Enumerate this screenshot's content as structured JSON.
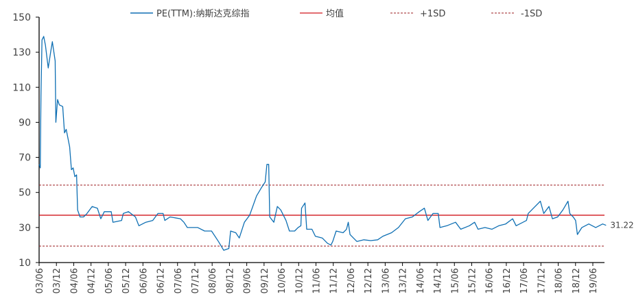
{
  "chart_data": {
    "type": "line",
    "title": "",
    "xlabel": "",
    "ylabel": "",
    "ylim": [
      10,
      150
    ],
    "yticks": [
      10,
      30,
      50,
      70,
      90,
      110,
      130,
      150
    ],
    "xticks": [
      "03/06",
      "03/12",
      "04/06",
      "04/12",
      "05/06",
      "05/12",
      "06/06",
      "06/12",
      "07/06",
      "07/12",
      "08/06",
      "08/12",
      "09/06",
      "09/12",
      "10/06",
      "10/12",
      "11/06",
      "11/12",
      "12/06",
      "12/12",
      "13/06",
      "13/12",
      "14/06",
      "14/12",
      "15/06",
      "15/12",
      "16/06",
      "16/12",
      "17/06",
      "17/12",
      "18/06",
      "18/12",
      "19/06"
    ],
    "grid": false,
    "legend_position": "top",
    "legend": [
      "PE(TTM):纳斯达克综指",
      "均值",
      "+1SD",
      "-1SD"
    ],
    "last_value_label": "31.22",
    "colors": {
      "pe": "#0E6FB3",
      "mean": "#D0141A",
      "sd": "#9B1B1F"
    },
    "mean": 37,
    "plus_1sd": 54.2,
    "minus_1sd": 19.4,
    "series": [
      {
        "name": "PE(TTM):纳斯达克综指",
        "x": [
          2003.42,
          2003.45,
          2003.47,
          2003.5,
          2003.55,
          2003.6,
          2003.68,
          2003.75,
          2003.8,
          2003.88,
          2003.9,
          2003.95,
          2004.0,
          2004.1,
          2004.15,
          2004.2,
          2004.3,
          2004.35,
          2004.4,
          2004.45,
          2004.5,
          2004.53,
          2004.6,
          2004.7,
          2004.8,
          2004.95,
          2005.1,
          2005.2,
          2005.3,
          2005.5,
          2005.55,
          2005.8,
          2005.85,
          2006.0,
          2006.2,
          2006.3,
          2006.5,
          2006.7,
          2006.85,
          2007.0,
          2007.05,
          2007.2,
          2007.5,
          2007.6,
          2007.7,
          2007.9,
          2008.0,
          2008.2,
          2008.4,
          2008.6,
          2008.75,
          2008.9,
          2008.95,
          2009.1,
          2009.2,
          2009.35,
          2009.5,
          2009.7,
          2009.85,
          2009.95,
          2010.0,
          2010.05,
          2010.08,
          2010.2,
          2010.3,
          2010.4,
          2010.55,
          2010.65,
          2010.8,
          2010.9,
          2010.98,
          2011.0,
          2011.1,
          2011.15,
          2011.3,
          2011.4,
          2011.6,
          2011.75,
          2011.85,
          2011.9,
          2012.0,
          2012.2,
          2012.3,
          2012.35,
          2012.4,
          2012.5,
          2012.6,
          2012.8,
          2013.0,
          2013.2,
          2013.35,
          2013.6,
          2013.8,
          2014.0,
          2014.2,
          2014.4,
          2014.55,
          2014.65,
          2014.8,
          2014.95,
          2015.0,
          2015.2,
          2015.45,
          2015.6,
          2015.85,
          2016.0,
          2016.1,
          2016.3,
          2016.5,
          2016.7,
          2016.9,
          2017.1,
          2017.2,
          2017.5,
          2017.55,
          2017.7,
          2017.9,
          2018.0,
          2018.15,
          2018.25,
          2018.4,
          2018.55,
          2018.7,
          2018.75,
          2018.85,
          2018.92,
          2018.97,
          2019.1,
          2019.3,
          2019.5,
          2019.7,
          2019.8
        ],
        "values": [
          66,
          64,
          105,
          137,
          139,
          134,
          121,
          130,
          136,
          125,
          90,
          103,
          100,
          99,
          84,
          86,
          76,
          63,
          64,
          59,
          60,
          40,
          36,
          36,
          38,
          42,
          41,
          35,
          39,
          39,
          33,
          34,
          38,
          39,
          36,
          31,
          33,
          34,
          38,
          38,
          34,
          36,
          35,
          33,
          30,
          30,
          30,
          28,
          28,
          22,
          17,
          18,
          28,
          27,
          24,
          33,
          37,
          48,
          53,
          56,
          66,
          66,
          36,
          33,
          42,
          40,
          34,
          28,
          28,
          30,
          31,
          41,
          44,
          29,
          29,
          25,
          24,
          21,
          20,
          22,
          28,
          27,
          29,
          33,
          26,
          24,
          22,
          23,
          22.5,
          23,
          25,
          27,
          30,
          35,
          36,
          39,
          41,
          34,
          38,
          38,
          30,
          31,
          33,
          29,
          31,
          33,
          29,
          30,
          29,
          31,
          32,
          35,
          31,
          34,
          38,
          41,
          45,
          38,
          42,
          35,
          36,
          40,
          45,
          38,
          36,
          34,
          26,
          30,
          32,
          30,
          32,
          31.22
        ]
      }
    ]
  }
}
